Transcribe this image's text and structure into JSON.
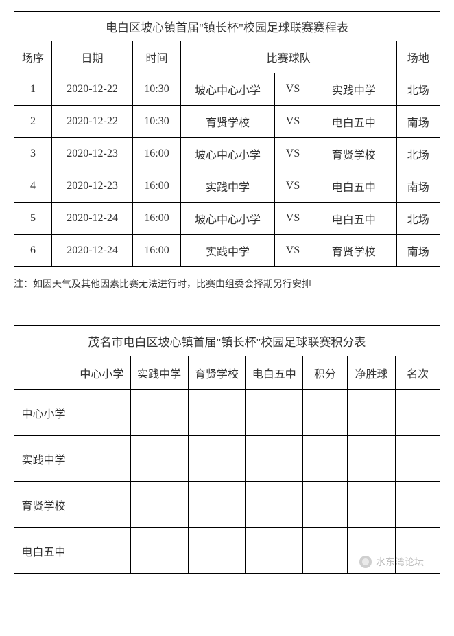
{
  "schedule": {
    "title": "电白区坡心镇首届\"镇长杯\"校园足球联赛赛程表",
    "columns": {
      "seq": "场序",
      "date": "日期",
      "time": "时间",
      "match": "比赛球队",
      "venue": "场地"
    },
    "col_widths": {
      "seq": 52,
      "date": 112,
      "time": 66,
      "team1": 130,
      "vs": 50,
      "team2": 118,
      "venue": 60
    },
    "rows": [
      {
        "seq": "1",
        "date": "2020-12-22",
        "time": "10:30",
        "team1": "坡心中心小学",
        "vs": "VS",
        "team2": "实践中学",
        "venue": "北场"
      },
      {
        "seq": "2",
        "date": "2020-12-22",
        "time": "10:30",
        "team1": "育贤学校",
        "vs": "VS",
        "team2": "电白五中",
        "venue": "南场"
      },
      {
        "seq": "3",
        "date": "2020-12-23",
        "time": "16:00",
        "team1": "坡心中心小学",
        "vs": "VS",
        "team2": "育贤学校",
        "venue": "北场"
      },
      {
        "seq": "4",
        "date": "2020-12-23",
        "time": "16:00",
        "team1": "实践中学",
        "vs": "VS",
        "team2": "电白五中",
        "venue": "南场"
      },
      {
        "seq": "5",
        "date": "2020-12-24",
        "time": "16:00",
        "team1": "坡心中心小学",
        "vs": "VS",
        "team2": "电白五中",
        "venue": "北场"
      },
      {
        "seq": "6",
        "date": "2020-12-24",
        "time": "16:00",
        "team1": "实践中学",
        "vs": "VS",
        "team2": "育贤学校",
        "venue": "南场"
      }
    ]
  },
  "note_text": "注：如因天气及其他因素比赛无法进行时，比赛由组委会择期另行安排",
  "standings": {
    "title": "茂名市电白区坡心镇首届\"镇长杯\"校园足球联赛积分表",
    "col_widths": {
      "rowlabel": 80,
      "team": 78,
      "pts": 60,
      "gd": 66,
      "rank": 60
    },
    "columns": {
      "blank": "",
      "t1": "中心小学",
      "t2": "实践中学",
      "t3": "育贤学校",
      "t4": "电白五中",
      "pts": "积分",
      "gd": "净胜球",
      "rank": "名次"
    },
    "rows": [
      {
        "label": "中心小学"
      },
      {
        "label": "实践中学"
      },
      {
        "label": "育贤学校"
      },
      {
        "label": "电白五中"
      }
    ]
  },
  "watermark": "水东湾论坛",
  "colors": {
    "border": "#000000",
    "text": "#333333",
    "watermark": "#bdbdbd",
    "background": "#ffffff"
  },
  "typography": {
    "body_font": "SimSun",
    "title_fontsize": 17,
    "cell_fontsize": 16,
    "note_fontsize": 14
  }
}
